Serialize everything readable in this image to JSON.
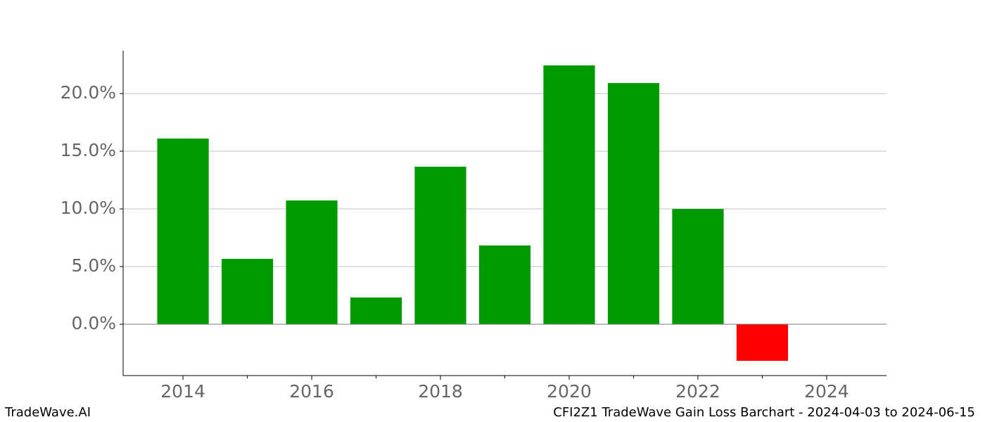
{
  "chart_data": {
    "type": "bar",
    "title": "CFI2Z1 TradeWave Gain Loss Barchart - 2024-04-03 to 2024-06-15",
    "source": "TradeWave.AI",
    "x": [
      2014,
      2015,
      2016,
      2017,
      2018,
      2019,
      2020,
      2021,
      2022,
      2023
    ],
    "values": [
      16.1,
      5.67,
      10.73,
      2.32,
      13.66,
      6.83,
      22.44,
      20.91,
      10.0,
      -3.17
    ],
    "positive_color": "#009900",
    "negative_color": "#ff0000",
    "xlim": [
      2013.07,
      2024.93
    ],
    "xticks": [
      2014,
      2016,
      2018,
      2020,
      2022,
      2024
    ],
    "xticks_minor": [
      2015,
      2017,
      2019,
      2021,
      2023
    ],
    "ylim": [
      -4.45,
      23.72
    ],
    "yticks": [
      {
        "value": 0,
        "label": "0.0%"
      },
      {
        "value": 5,
        "label": "5.0%"
      },
      {
        "value": 10,
        "label": "10.0%"
      },
      {
        "value": 15,
        "label": "15.0%"
      },
      {
        "value": 20,
        "label": "20.0%"
      }
    ],
    "grid": true
  }
}
